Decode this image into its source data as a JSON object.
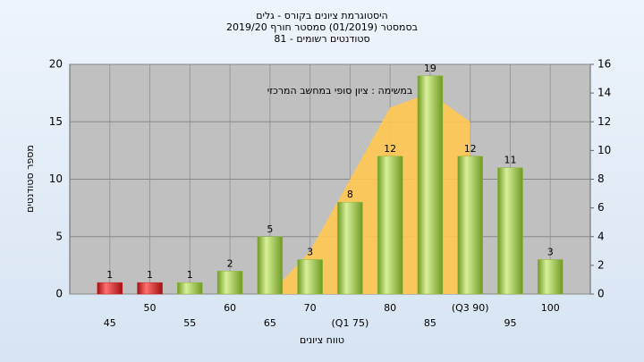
{
  "chart_data": {
    "type": "bar",
    "title": [
      "היסטוגרמת ציונים בקורס - גלים",
      "בסמסטר (01/2019) סמסטר חורף 2019/20",
      "סטודנטים רשומים - 81"
    ],
    "annotation": "במשימה : ציון סופי במחשב המרכזי",
    "x_label": "טווח ציונים",
    "y_label": "מספר סטודנטים",
    "categories": [
      "45",
      "50",
      "55",
      "60",
      "65",
      "70",
      "(Q1 75)",
      "80",
      "85",
      "(Q3 90)",
      "95",
      "100"
    ],
    "series": [
      {
        "type": "bar",
        "colors": [
          "#d42020",
          "#d42020",
          "#8db83a",
          "#8db83a",
          "#8db83a",
          "#8db83a",
          "#8db83a",
          "#8db83a",
          "#8db83a",
          "#8db83a",
          "#8db83a",
          "#8db83a"
        ],
        "values": [
          1,
          1,
          1,
          2,
          5,
          3,
          8,
          12,
          19,
          12,
          11,
          3
        ]
      },
      {
        "type": "area",
        "axis": "y2",
        "color": "#ffc850",
        "values": [
          null,
          null,
          null,
          null,
          0,
          3,
          8,
          13,
          14,
          12,
          null,
          null
        ]
      }
    ],
    "ylim": [
      0,
      20
    ],
    "yticks": [
      0,
      5,
      10,
      15,
      20
    ],
    "y2lim": [
      0,
      16
    ],
    "y2ticks": [
      0,
      2,
      4,
      6,
      8,
      10,
      12,
      14,
      16
    ],
    "grid": true
  }
}
